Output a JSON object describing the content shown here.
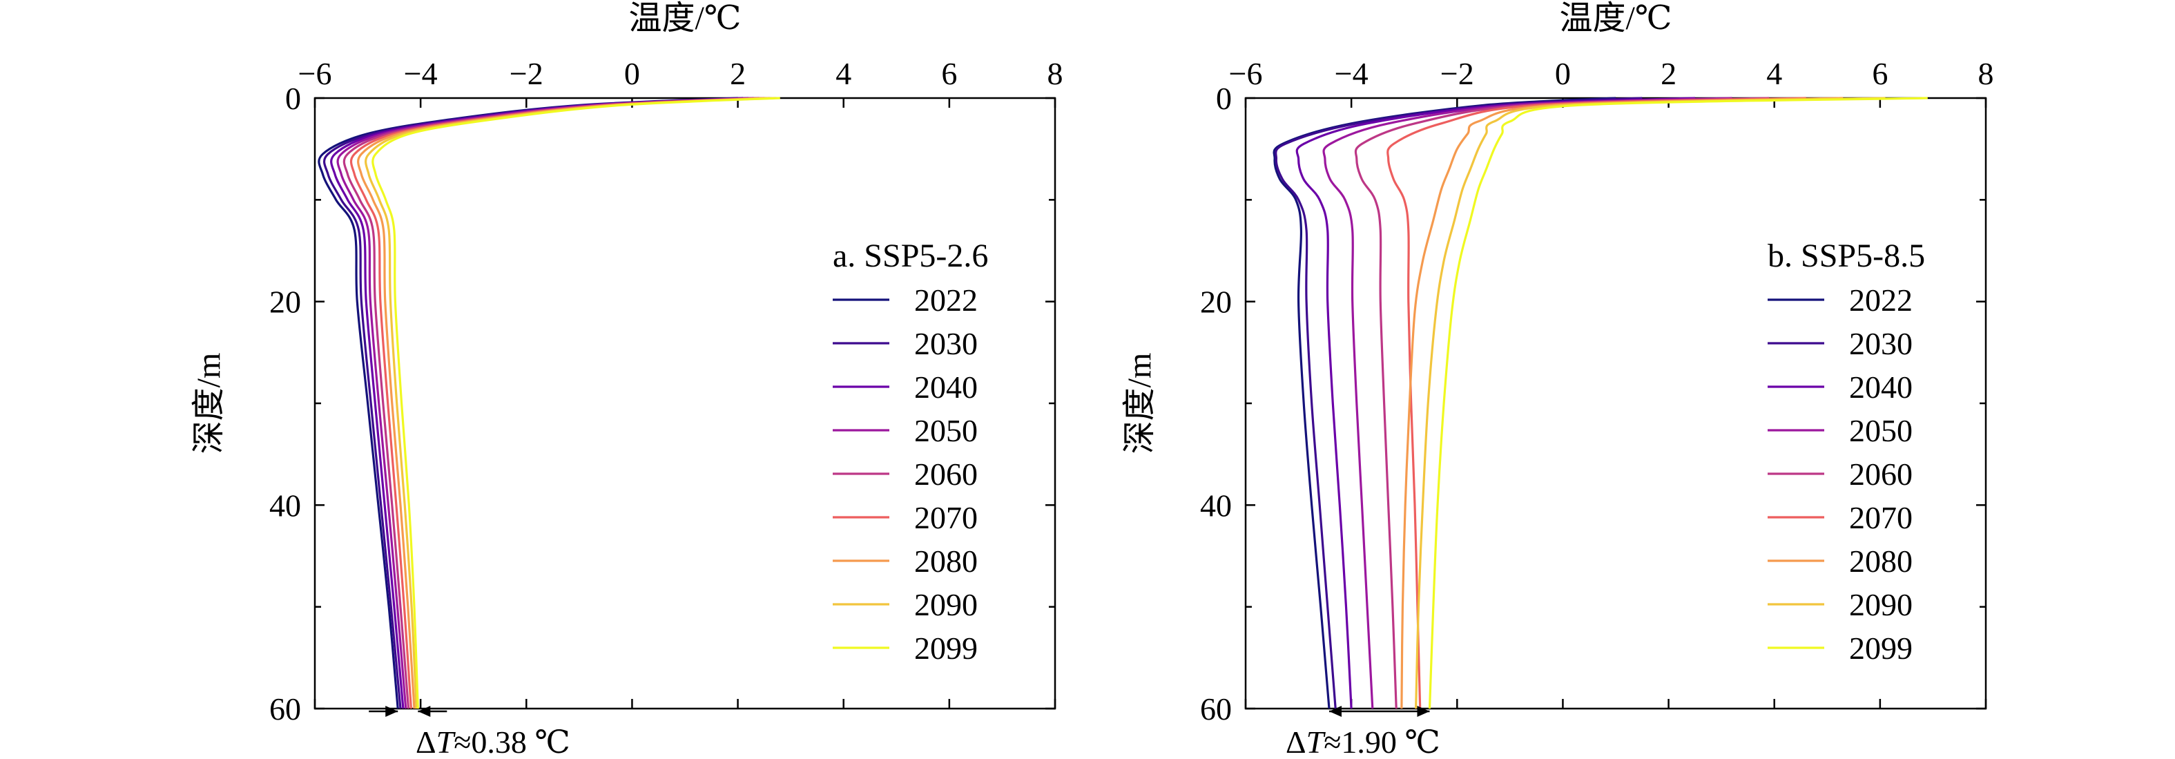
{
  "chart_data": [
    {
      "type": "line",
      "panel_label": "a. SSP5-2.6",
      "xlabel": "温度/℃",
      "ylabel": "深度/m",
      "xlim": [
        -6,
        8
      ],
      "ylim": [
        0,
        60
      ],
      "y_inverted": true,
      "x_axis_position": "top",
      "x_ticks": [
        -6,
        -4,
        -2,
        0,
        2,
        4,
        6,
        8
      ],
      "x_tick_labels": [
        "−6",
        "−4",
        "−2",
        "0",
        "2",
        "4",
        "6",
        "8"
      ],
      "y_ticks": [
        0,
        20,
        40,
        60
      ],
      "y_tick_labels": [
        "0",
        "20",
        "40",
        "60"
      ],
      "legend_position": "right",
      "annotation": {
        "prefix": "Δ",
        "var": "T",
        "text": "≈0.38 ℃",
        "x_from": -4.43,
        "x_to": -4.05,
        "at_depth": 60
      },
      "series": [
        {
          "name": "2022",
          "color": "#14127a",
          "points": [
            [
              2.0,
              0
            ],
            [
              -1.0,
              0.7
            ],
            [
              -3.3,
              2.0
            ],
            [
              -5.0,
              3.5
            ],
            [
              -5.85,
              5.5
            ],
            [
              -5.85,
              7.5
            ],
            [
              -5.6,
              10
            ],
            [
              -5.25,
              13
            ],
            [
              -5.2,
              20
            ],
            [
              -5.0,
              30
            ],
            [
              -4.8,
              40
            ],
            [
              -4.6,
              50
            ],
            [
              -4.43,
              60
            ]
          ]
        },
        {
          "name": "2030",
          "color": "#3d0b8f",
          "points": [
            [
              2.1,
              0
            ],
            [
              -0.9,
              0.7
            ],
            [
              -3.2,
              2.0
            ],
            [
              -4.9,
              3.5
            ],
            [
              -5.75,
              5.5
            ],
            [
              -5.75,
              7.5
            ],
            [
              -5.5,
              10
            ],
            [
              -5.17,
              13
            ],
            [
              -5.12,
              20
            ],
            [
              -4.94,
              30
            ],
            [
              -4.75,
              40
            ],
            [
              -4.56,
              50
            ],
            [
              -4.38,
              60
            ]
          ]
        },
        {
          "name": "2040",
          "color": "#6a00a8",
          "points": [
            [
              2.2,
              0
            ],
            [
              -0.8,
              0.7
            ],
            [
              -3.1,
              2.0
            ],
            [
              -4.8,
              3.5
            ],
            [
              -5.62,
              5.5
            ],
            [
              -5.62,
              7.5
            ],
            [
              -5.38,
              10
            ],
            [
              -5.08,
              13
            ],
            [
              -5.03,
              20
            ],
            [
              -4.86,
              30
            ],
            [
              -4.68,
              40
            ],
            [
              -4.5,
              50
            ],
            [
              -4.33,
              60
            ]
          ]
        },
        {
          "name": "2050",
          "color": "#9c179e",
          "points": [
            [
              2.3,
              0
            ],
            [
              -0.7,
              0.7
            ],
            [
              -3.0,
              2.0
            ],
            [
              -4.7,
              3.5
            ],
            [
              -5.5,
              5.5
            ],
            [
              -5.5,
              7.5
            ],
            [
              -5.27,
              10
            ],
            [
              -4.99,
              13
            ],
            [
              -4.95,
              20
            ],
            [
              -4.79,
              30
            ],
            [
              -4.61,
              40
            ],
            [
              -4.44,
              50
            ],
            [
              -4.28,
              60
            ]
          ]
        },
        {
          "name": "2060",
          "color": "#bd3786",
          "points": [
            [
              2.4,
              0
            ],
            [
              -0.6,
              0.7
            ],
            [
              -2.9,
              2.0
            ],
            [
              -4.6,
              3.5
            ],
            [
              -5.38,
              5.5
            ],
            [
              -5.38,
              7.5
            ],
            [
              -5.15,
              10
            ],
            [
              -4.9,
              13
            ],
            [
              -4.86,
              20
            ],
            [
              -4.71,
              30
            ],
            [
              -4.54,
              40
            ],
            [
              -4.38,
              50
            ],
            [
              -4.23,
              60
            ]
          ]
        },
        {
          "name": "2070",
          "color": "#ed5e5e",
          "points": [
            [
              2.5,
              0
            ],
            [
              -0.5,
              0.7
            ],
            [
              -2.8,
              2.0
            ],
            [
              -4.5,
              3.5
            ],
            [
              -5.25,
              5.5
            ],
            [
              -5.25,
              7.5
            ],
            [
              -5.03,
              10
            ],
            [
              -4.8,
              13
            ],
            [
              -4.76,
              20
            ],
            [
              -4.62,
              30
            ],
            [
              -4.46,
              40
            ],
            [
              -4.31,
              50
            ],
            [
              -4.18,
              60
            ]
          ]
        },
        {
          "name": "2080",
          "color": "#f59a4e",
          "points": [
            [
              2.6,
              0
            ],
            [
              -0.4,
              0.7
            ],
            [
              -2.7,
              2.0
            ],
            [
              -4.4,
              3.5
            ],
            [
              -5.12,
              5.5
            ],
            [
              -5.12,
              7.5
            ],
            [
              -4.9,
              10
            ],
            [
              -4.7,
              13
            ],
            [
              -4.67,
              20
            ],
            [
              -4.54,
              30
            ],
            [
              -4.38,
              40
            ],
            [
              -4.24,
              50
            ],
            [
              -4.12,
              60
            ]
          ]
        },
        {
          "name": "2090",
          "color": "#f2c53d",
          "points": [
            [
              2.7,
              0
            ],
            [
              -0.3,
              0.7
            ],
            [
              -2.6,
              2.0
            ],
            [
              -4.3,
              3.5
            ],
            [
              -4.98,
              5.5
            ],
            [
              -4.98,
              7.5
            ],
            [
              -4.78,
              10
            ],
            [
              -4.6,
              13
            ],
            [
              -4.57,
              20
            ],
            [
              -4.45,
              30
            ],
            [
              -4.3,
              40
            ],
            [
              -4.17,
              50
            ],
            [
              -4.08,
              60
            ]
          ]
        },
        {
          "name": "2099",
          "color": "#f0f921",
          "points": [
            [
              2.8,
              0
            ],
            [
              -0.2,
              0.7
            ],
            [
              -2.5,
              2.0
            ],
            [
              -4.2,
              3.5
            ],
            [
              -4.85,
              5.5
            ],
            [
              -4.85,
              7.5
            ],
            [
              -4.66,
              10
            ],
            [
              -4.5,
              13
            ],
            [
              -4.48,
              20
            ],
            [
              -4.36,
              30
            ],
            [
              -4.22,
              40
            ],
            [
              -4.12,
              50
            ],
            [
              -4.05,
              60
            ]
          ]
        }
      ]
    },
    {
      "type": "line",
      "panel_label": "b. SSP5-8.5",
      "xlabel": "温度/℃",
      "ylabel": "深度/m",
      "xlim": [
        -6,
        8
      ],
      "ylim": [
        0,
        60
      ],
      "y_inverted": true,
      "x_axis_position": "top",
      "x_ticks": [
        -6,
        -4,
        -2,
        0,
        2,
        4,
        6,
        8
      ],
      "x_tick_labels": [
        "−6",
        "−4",
        "−2",
        "0",
        "2",
        "4",
        "6",
        "8"
      ],
      "y_ticks": [
        0,
        20,
        40,
        60
      ],
      "y_tick_labels": [
        "0",
        "20",
        "40",
        "60"
      ],
      "legend_position": "right",
      "annotation": {
        "prefix": "Δ",
        "var": "T",
        "text": "≈1.90 ℃",
        "x_from": -4.42,
        "x_to": -2.52,
        "at_depth": 60
      },
      "series": [
        {
          "name": "2022",
          "color": "#14127a",
          "points": [
            [
              1.0,
              0
            ],
            [
              -1.5,
              0.7
            ],
            [
              -4.0,
              2.5
            ],
            [
              -5.3,
              4.5
            ],
            [
              -5.45,
              6.0
            ],
            [
              -5.35,
              8.0
            ],
            [
              -5.05,
              10
            ],
            [
              -4.95,
              13
            ],
            [
              -5.0,
              20
            ],
            [
              -4.9,
              30
            ],
            [
              -4.75,
              40
            ],
            [
              -4.58,
              50
            ],
            [
              -4.42,
              60
            ]
          ]
        },
        {
          "name": "2030",
          "color": "#3d0b8f",
          "points": [
            [
              1.5,
              0
            ],
            [
              -1.3,
              0.7
            ],
            [
              -3.9,
              2.5
            ],
            [
              -5.25,
              4.5
            ],
            [
              -5.42,
              6.0
            ],
            [
              -5.3,
              8.0
            ],
            [
              -5.0,
              10
            ],
            [
              -4.85,
              13
            ],
            [
              -4.85,
              20
            ],
            [
              -4.75,
              30
            ],
            [
              -4.6,
              40
            ],
            [
              -4.45,
              50
            ],
            [
              -4.3,
              60
            ]
          ]
        },
        {
          "name": "2040",
          "color": "#6a00a8",
          "points": [
            [
              2.5,
              0
            ],
            [
              -1.1,
              0.7
            ],
            [
              -3.7,
              2.5
            ],
            [
              -4.9,
              4.5
            ],
            [
              -5.0,
              6.0
            ],
            [
              -4.9,
              8.0
            ],
            [
              -4.6,
              10
            ],
            [
              -4.45,
              13
            ],
            [
              -4.45,
              20
            ],
            [
              -4.35,
              30
            ],
            [
              -4.22,
              40
            ],
            [
              -4.1,
              50
            ],
            [
              -4.0,
              60
            ]
          ]
        },
        {
          "name": "2050",
          "color": "#9c179e",
          "points": [
            [
              3.2,
              0
            ],
            [
              -0.9,
              0.7
            ],
            [
              -3.3,
              2.5
            ],
            [
              -4.4,
              4.5
            ],
            [
              -4.5,
              6.0
            ],
            [
              -4.4,
              8.0
            ],
            [
              -4.12,
              10
            ],
            [
              -3.98,
              13
            ],
            [
              -3.98,
              20
            ],
            [
              -3.9,
              30
            ],
            [
              -3.8,
              40
            ],
            [
              -3.7,
              50
            ],
            [
              -3.6,
              60
            ]
          ]
        },
        {
          "name": "2060",
          "color": "#bd3786",
          "points": [
            [
              3.9,
              0
            ],
            [
              -0.7,
              0.7
            ],
            [
              -2.8,
              2.5
            ],
            [
              -3.8,
              4.5
            ],
            [
              -3.9,
              6.0
            ],
            [
              -3.8,
              8.0
            ],
            [
              -3.55,
              10
            ],
            [
              -3.45,
              13
            ],
            [
              -3.45,
              20
            ],
            [
              -3.38,
              30
            ],
            [
              -3.3,
              40
            ],
            [
              -3.22,
              50
            ],
            [
              -3.15,
              60
            ]
          ]
        },
        {
          "name": "2070",
          "color": "#ed5e5e",
          "points": [
            [
              4.6,
              0
            ],
            [
              -0.5,
              0.7
            ],
            [
              -2.3,
              2.5
            ],
            [
              -3.2,
              4.5
            ],
            [
              -3.3,
              6.0
            ],
            [
              -3.2,
              8.0
            ],
            [
              -3.0,
              10
            ],
            [
              -2.92,
              13
            ],
            [
              -2.92,
              20
            ],
            [
              -2.87,
              30
            ],
            [
              -2.8,
              40
            ],
            [
              -2.75,
              50
            ],
            [
              -2.7,
              60
            ]
          ]
        },
        {
          "name": "2080",
          "color": "#f59a4e",
          "points": [
            [
              5.3,
              0
            ],
            [
              -0.2,
              0.7
            ],
            [
              -1.6,
              2.3
            ],
            [
              -1.8,
              3.5
            ],
            [
              -2.0,
              5.0
            ],
            [
              -2.15,
              7.0
            ],
            [
              -2.3,
              9.0
            ],
            [
              -2.45,
              12
            ],
            [
              -2.65,
              16
            ],
            [
              -2.8,
              21
            ],
            [
              -2.9,
              30
            ],
            [
              -2.98,
              40
            ],
            [
              -3.03,
              50
            ],
            [
              -3.05,
              60
            ]
          ]
        },
        {
          "name": "2090",
          "color": "#f2c53d",
          "points": [
            [
              6.1,
              0
            ],
            [
              0.0,
              0.7
            ],
            [
              -1.3,
              2.3
            ],
            [
              -1.45,
              3.5
            ],
            [
              -1.6,
              5.0
            ],
            [
              -1.75,
              7.0
            ],
            [
              -1.9,
              9.0
            ],
            [
              -2.05,
              12
            ],
            [
              -2.25,
              16
            ],
            [
              -2.4,
              21
            ],
            [
              -2.55,
              30
            ],
            [
              -2.65,
              40
            ],
            [
              -2.73,
              50
            ],
            [
              -2.78,
              60
            ]
          ]
        },
        {
          "name": "2099",
          "color": "#f0f921",
          "points": [
            [
              6.9,
              0
            ],
            [
              0.3,
              0.7
            ],
            [
              -1.0,
              2.3
            ],
            [
              -1.15,
              3.5
            ],
            [
              -1.3,
              5.0
            ],
            [
              -1.45,
              7.0
            ],
            [
              -1.6,
              9.0
            ],
            [
              -1.75,
              12
            ],
            [
              -1.95,
              16
            ],
            [
              -2.1,
              21
            ],
            [
              -2.25,
              30
            ],
            [
              -2.37,
              40
            ],
            [
              -2.45,
              50
            ],
            [
              -2.52,
              60
            ]
          ]
        }
      ]
    }
  ]
}
